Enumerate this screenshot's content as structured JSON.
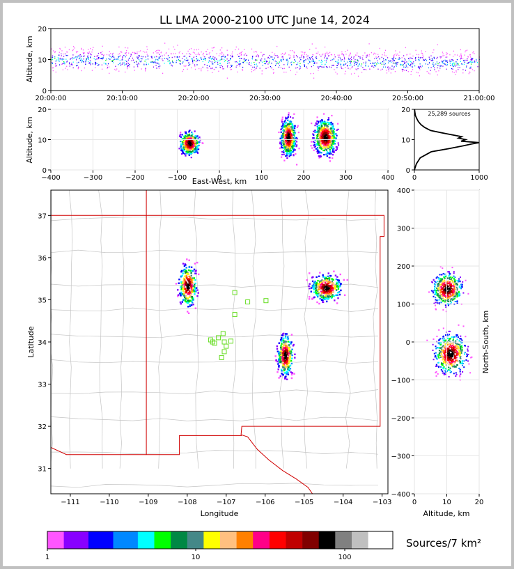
{
  "chart_data": {
    "type": "multi-panel lightning density",
    "title": "LL LMA 2000-2100 UTC June 14, 2024",
    "panels": {
      "time_altitude": {
        "ylabel": "Altitude, km",
        "ylim": [
          0,
          20
        ],
        "yticks": [
          "0",
          "10",
          "20"
        ],
        "xticks": [
          "20:00:00",
          "20:10:00",
          "20:20:00",
          "20:30:00",
          "20:40:00",
          "20:50:00",
          "21:00:00"
        ]
      },
      "ew_altitude": {
        "ylabel": "Altitude, km",
        "xlabel": "East-West, km",
        "xlim": [
          -400,
          400
        ],
        "ylim": [
          0,
          20
        ],
        "xticks": [
          "−400",
          "−300",
          "−200",
          "−100",
          "0",
          "100",
          "200",
          "300",
          "400"
        ],
        "yticks": [
          "0",
          "10",
          "20"
        ],
        "clusters": [
          {
            "x": -72,
            "alt": 9
          },
          {
            "x": 162,
            "alt": 11
          },
          {
            "x": 250,
            "alt": 11
          }
        ]
      },
      "altitude_histogram": {
        "annotation": "25,289 sources",
        "xlim": [
          0,
          1000
        ],
        "ylim": [
          0,
          20
        ],
        "xticks": [
          "0",
          "1000"
        ],
        "yticks": [
          "0",
          "10",
          "20"
        ],
        "profile": [
          [
            0,
            0
          ],
          [
            2,
            30
          ],
          [
            4,
            90
          ],
          [
            6,
            260
          ],
          [
            7,
            520
          ],
          [
            8,
            760
          ],
          [
            8.5,
            870
          ],
          [
            9,
            1000
          ],
          [
            9.5,
            720
          ],
          [
            10,
            790
          ],
          [
            10.5,
            680
          ],
          [
            11,
            730
          ],
          [
            12,
            480
          ],
          [
            13,
            250
          ],
          [
            14,
            160
          ],
          [
            15,
            100
          ],
          [
            16,
            60
          ],
          [
            17,
            35
          ],
          [
            18,
            15
          ],
          [
            19,
            8
          ],
          [
            20,
            2
          ]
        ]
      },
      "map": {
        "xlabel": "Longitude",
        "ylabel": "Latitude",
        "xlim": [
          -111.5,
          -102.85
        ],
        "ylim": [
          30.4,
          37.6
        ],
        "xticks": [
          "−111",
          "−110",
          "−109",
          "−108",
          "−107",
          "−106",
          "−105",
          "−104",
          "−103"
        ],
        "yticks": [
          "31",
          "32",
          "33",
          "34",
          "35",
          "36",
          "37"
        ],
        "clusters": [
          {
            "lon": -108.0,
            "lat": 35.35
          },
          {
            "lon": -104.45,
            "lat": 35.3
          },
          {
            "lon": -105.5,
            "lat": 33.7
          }
        ],
        "stations": [
          [
            -106.78,
            35.17
          ],
          [
            -106.45,
            34.95
          ],
          [
            -105.98,
            34.98
          ],
          [
            -106.78,
            34.65
          ],
          [
            -107.08,
            34.2
          ],
          [
            -107.2,
            34.1
          ],
          [
            -107.35,
            34.0
          ],
          [
            -107.4,
            34.05
          ],
          [
            -107.05,
            34.0
          ],
          [
            -106.88,
            34.02
          ],
          [
            -107.0,
            33.9
          ],
          [
            -107.05,
            33.77
          ],
          [
            -107.12,
            33.63
          ],
          [
            -107.3,
            33.97
          ]
        ]
      },
      "ns_altitude": {
        "ylabel": "North-South, km",
        "xlabel": "Altitude, km",
        "ylim": [
          -400,
          400
        ],
        "xlim": [
          0,
          20
        ],
        "yticks": [
          "−400",
          "−300",
          "−200",
          "−100",
          "0",
          "100",
          "200",
          "300",
          "400"
        ],
        "xticks": [
          "0",
          "10",
          "20"
        ],
        "clusters": [
          {
            "alt": 10,
            "ns": 140
          },
          {
            "alt": 11,
            "ns": -30
          }
        ]
      }
    },
    "colorbar": {
      "label": "Sources/7 km²",
      "ticks": [
        "1",
        "10",
        "100"
      ],
      "colors": [
        "#ff55ff",
        "#8800ff",
        "#0000ff",
        "#0088ff",
        "#00ffff",
        "#00ff00",
        "#008844",
        "#448888",
        "#ffff00",
        "#ffc080",
        "#ff8000",
        "#ff0088",
        "#ff0000",
        "#c00000",
        "#800000",
        "#000000",
        "#808080",
        "#c0c0c0",
        "#ffffff"
      ]
    }
  }
}
